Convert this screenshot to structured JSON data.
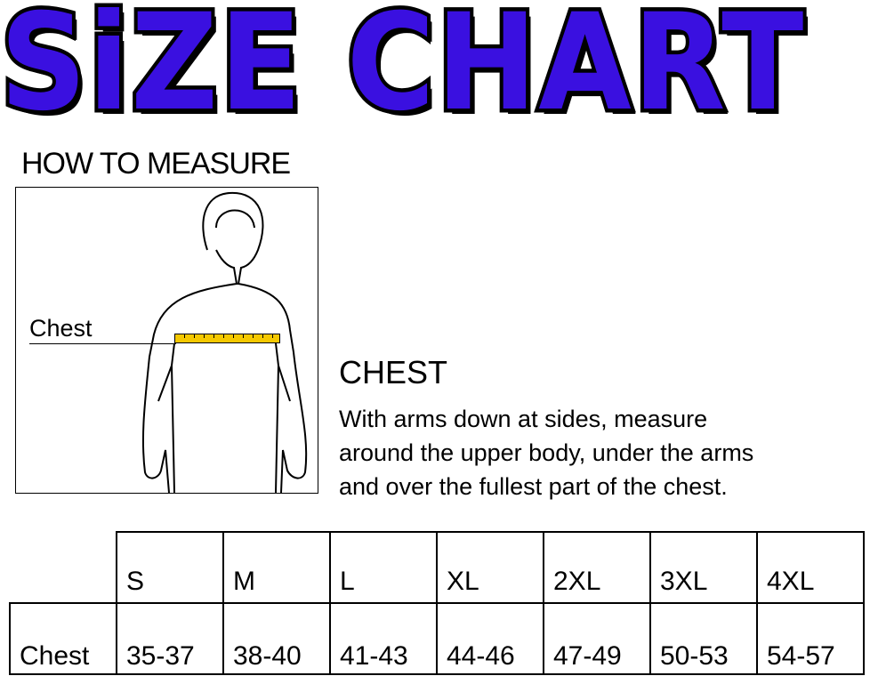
{
  "title": "SiZE CHART",
  "title_color": "#3a10e0",
  "how_to_measure": "HOW TO MEASURE",
  "figure": {
    "label": "Chest",
    "tape_color": "#f5c800"
  },
  "chest_heading": "CHEST",
  "chest_description": [
    "With arms down at sides, measure",
    "around the upper body, under the arms",
    "and over the fullest part of the chest."
  ],
  "table": {
    "sizes": [
      "S",
      "M",
      "L",
      "XL",
      "2XL",
      "3XL",
      "4XL"
    ],
    "row_label": "Chest",
    "values": [
      "35-37",
      "38-40",
      "41-43",
      "44-46",
      "47-49",
      "50-53",
      "54-57"
    ]
  }
}
